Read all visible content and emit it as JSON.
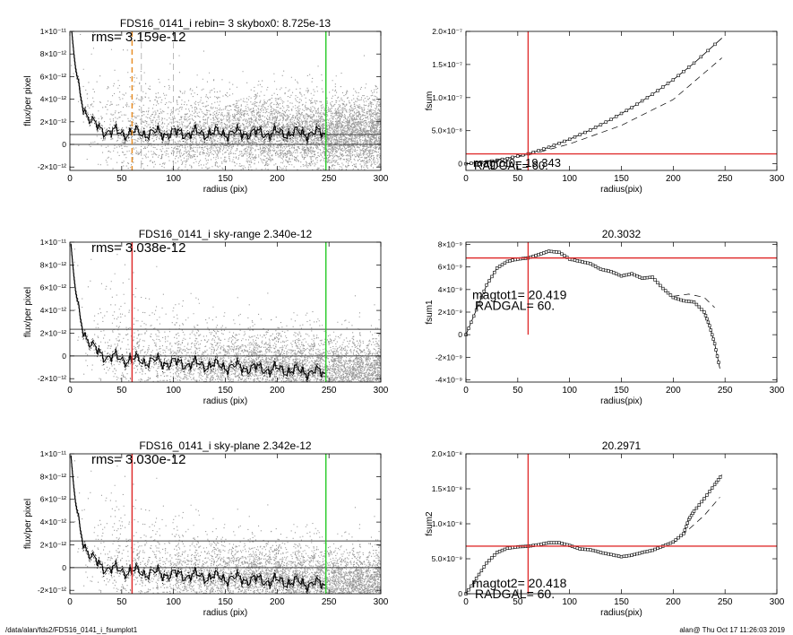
{
  "footer": {
    "left": "/data/alan/fds2/FDS16_0141_i_fsumplot1",
    "right": "alan@  Thu Oct 17 11:26:03 2019"
  },
  "colors": {
    "red": "#e03030",
    "green": "#2ecc2e",
    "orange": "#e8902a",
    "scatter": "#9a9a9a",
    "line": "#000000"
  },
  "chart_data": [
    {
      "type": "scatter",
      "panel": "row1-left",
      "title": "FDS16_0141_i rebin= 3    skybox0:  8.725e-13",
      "annotation": "rms= 3.159e-12",
      "xlabel": "radius (pix)",
      "ylabel": "flux/per pixel",
      "xlim": [
        0,
        300
      ],
      "ylim": [
        -2.3e-12,
        1e-11
      ],
      "xticks": [
        0,
        50,
        100,
        150,
        200,
        250,
        300
      ],
      "xtick_labels": [
        "0",
        "50",
        "100",
        "150",
        "200",
        "250",
        "300"
      ],
      "yticks": [
        -2e-12,
        0,
        2e-12,
        4e-12,
        6e-12,
        8e-12,
        1e-11
      ],
      "ytick_labels": [
        "-2×10⁻¹²",
        "0",
        "2×10⁻¹²",
        "4×10⁻¹²",
        "6×10⁻¹²",
        "8×10⁻¹²",
        "1×10⁻¹¹"
      ],
      "hlines": [
        0,
        8.725e-13
      ],
      "vlines": [
        {
          "x": 60,
          "color": "orange",
          "style": "dashed"
        },
        {
          "x": 69,
          "color": "gray",
          "style": "dashed"
        },
        {
          "x": 100,
          "color": "gray",
          "style": "dashed"
        },
        {
          "x": 247,
          "color": "green",
          "style": "solid"
        }
      ],
      "profile_offset": 1e-12
    },
    {
      "type": "line",
      "panel": "row1-right",
      "title": "",
      "xlabel": "radius(pix)",
      "ylabel": "fsum",
      "xlim": [
        0,
        300
      ],
      "ylim": [
        -1e-08,
        2e-07
      ],
      "xticks": [
        0,
        50,
        100,
        150,
        200,
        250,
        300
      ],
      "xtick_labels": [
        "0",
        "50",
        "100",
        "150",
        "200",
        "250",
        "300"
      ],
      "yticks": [
        0,
        5e-08,
        1e-07,
        1.5e-07,
        2e-07
      ],
      "ytick_labels": [
        "0",
        "5.0×10⁻⁸",
        "1.0×10⁻⁷",
        "1.5×10⁻⁷",
        "2.0×10⁻⁷"
      ],
      "red_vline": 60,
      "red_hline": 1.5e-08,
      "annotations": [
        "magtot0=  19.343",
        "RADGAL=     60."
      ],
      "curve": {
        "x": [
          0,
          20,
          40,
          60,
          80,
          100,
          120,
          140,
          160,
          180,
          200,
          220,
          247
        ],
        "y": [
          0,
          3e-09,
          8e-09,
          1.5e-08,
          2.5e-08,
          3.7e-08,
          5.1e-08,
          6.7e-08,
          8.5e-08,
          1.05e-07,
          1.27e-07,
          1.52e-07,
          1.9e-07
        ]
      },
      "dashed": {
        "x": [
          0,
          60,
          100,
          150,
          200,
          247
        ],
        "y": [
          0,
          1.3e-08,
          3e-08,
          5.8e-08,
          9.7e-08,
          1.6e-07
        ]
      }
    },
    {
      "type": "scatter",
      "panel": "row2-left",
      "title": "FDS16_0141_i sky-range  2.340e-12",
      "annotation": "rms= 3.038e-12",
      "xlabel": "radius (pix)",
      "ylabel": "flux/per pixel",
      "xlim": [
        0,
        300
      ],
      "ylim": [
        -2.3e-12,
        1e-11
      ],
      "xticks": [
        0,
        50,
        100,
        150,
        200,
        250,
        300
      ],
      "xtick_labels": [
        "0",
        "50",
        "100",
        "150",
        "200",
        "250",
        "300"
      ],
      "yticks": [
        -2e-12,
        0,
        2e-12,
        4e-12,
        6e-12,
        8e-12,
        1e-11
      ],
      "ytick_labels": [
        "-2×10⁻¹²",
        "0",
        "2×10⁻¹²",
        "4×10⁻¹²",
        "6×10⁻¹²",
        "8×10⁻¹²",
        "1×10⁻¹¹"
      ],
      "hlines": [
        0,
        2.34e-12
      ],
      "vlines": [
        {
          "x": 60,
          "color": "red",
          "style": "solid"
        },
        {
          "x": 247,
          "color": "green",
          "style": "solid"
        }
      ],
      "profile_offset": 0
    },
    {
      "type": "line",
      "panel": "row2-right",
      "title": "20.3032",
      "xlabel": "radius(pix)",
      "ylabel": "fsum1",
      "xlim": [
        0,
        300
      ],
      "ylim": [
        -4.2e-09,
        8.2e-09
      ],
      "xticks": [
        0,
        50,
        100,
        150,
        200,
        250,
        300
      ],
      "xtick_labels": [
        "0",
        "50",
        "100",
        "150",
        "200",
        "250",
        "300"
      ],
      "yticks": [
        -4e-09,
        -2e-09,
        0,
        2e-09,
        4e-09,
        6e-09,
        8e-09
      ],
      "ytick_labels": [
        "-4×10⁻⁹",
        "-2×10⁻⁹",
        "0",
        "2×10⁻⁹",
        "4×10⁻⁹",
        "6×10⁻⁹",
        "8×10⁻⁹"
      ],
      "red_vline": 60,
      "red_hline": 6.8e-09,
      "red_vline_ymin": 0,
      "annotations": [
        "magtot1=  20.419",
        "RADGAL=     60."
      ],
      "curve": {
        "x": [
          0,
          10,
          20,
          30,
          40,
          50,
          60,
          70,
          80,
          90,
          100,
          110,
          120,
          130,
          140,
          150,
          160,
          170,
          180,
          190,
          200,
          210,
          220,
          230,
          235,
          240,
          245
        ],
        "y": [
          0,
          2.2e-09,
          4.4e-09,
          5.9e-09,
          6.5e-09,
          6.7e-09,
          6.8e-09,
          7.1e-09,
          7.4e-09,
          7.3e-09,
          6.7e-09,
          6.5e-09,
          6.3e-09,
          5.8e-09,
          5.6e-09,
          5.2e-09,
          5.4e-09,
          5e-09,
          5.1e-09,
          4.1e-09,
          3.3e-09,
          3e-09,
          2.9e-09,
          2e-09,
          8e-10,
          -8e-10,
          -3e-09
        ]
      },
      "dashed": {
        "x": [
          200,
          215,
          230,
          240
        ],
        "y": [
          3.4e-09,
          3.6e-09,
          3.3e-09,
          2.4e-09
        ]
      }
    },
    {
      "type": "scatter",
      "panel": "row3-left",
      "title": "FDS16_0141_i sky-plane  2.342e-12",
      "annotation": "rms= 3.030e-12",
      "xlabel": "radius (pix)",
      "ylabel": "flux/per pixel",
      "xlim": [
        0,
        300
      ],
      "ylim": [
        -2.3e-12,
        1e-11
      ],
      "xticks": [
        0,
        50,
        100,
        150,
        200,
        250,
        300
      ],
      "xtick_labels": [
        "0",
        "50",
        "100",
        "150",
        "200",
        "250",
        "300"
      ],
      "yticks": [
        -2e-12,
        0,
        2e-12,
        4e-12,
        6e-12,
        8e-12,
        1e-11
      ],
      "ytick_labels": [
        "-2×10⁻¹²",
        "0",
        "2×10⁻¹²",
        "4×10⁻¹²",
        "6×10⁻¹²",
        "8×10⁻¹²",
        "1×10⁻¹¹"
      ],
      "hlines": [
        0,
        2.342e-12
      ],
      "vlines": [
        {
          "x": 60,
          "color": "red",
          "style": "solid"
        },
        {
          "x": 247,
          "color": "green",
          "style": "solid"
        }
      ],
      "profile_offset": 0
    },
    {
      "type": "line",
      "panel": "row3-right",
      "title": "20.2971",
      "xlabel": "radius(pix)",
      "ylabel": "fsum2",
      "xlim": [
        0,
        300
      ],
      "ylim": [
        0,
        2e-08
      ],
      "xticks": [
        0,
        50,
        100,
        150,
        200,
        250,
        300
      ],
      "xtick_labels": [
        "0",
        "50",
        "100",
        "150",
        "200",
        "250",
        "300"
      ],
      "yticks": [
        0,
        5e-09,
        1e-08,
        1.5e-08,
        2e-08
      ],
      "ytick_labels": [
        "0",
        "5.0×10⁻⁹",
        "1.0×10⁻⁸",
        "1.5×10⁻⁸",
        "2.0×10⁻⁸"
      ],
      "red_vline": 60,
      "red_hline": 6.8e-09,
      "annotations": [
        "magtot2=  20.418",
        "RADGAL=     60."
      ],
      "curve": {
        "x": [
          0,
          10,
          20,
          30,
          40,
          50,
          60,
          70,
          80,
          90,
          100,
          110,
          120,
          130,
          140,
          150,
          160,
          170,
          180,
          190,
          200,
          210,
          215,
          220,
          230,
          240,
          247
        ],
        "y": [
          0,
          2.2e-09,
          4.4e-09,
          5.9e-09,
          6.5e-09,
          6.7e-09,
          6.8e-09,
          7e-09,
          7.3e-09,
          7.3e-09,
          6.9e-09,
          6.4e-09,
          6.3e-09,
          5.9e-09,
          5.6e-09,
          5.3e-09,
          5.5e-09,
          5.9e-09,
          6.2e-09,
          6.8e-09,
          7.4e-09,
          8.6e-09,
          1.06e-08,
          1.18e-08,
          1.36e-08,
          1.56e-08,
          1.7e-08
        ]
      },
      "dashed": {
        "x": [
          200,
          215,
          230,
          245
        ],
        "y": [
          7.2e-09,
          9.2e-09,
          1.12e-08,
          1.38e-08
        ]
      }
    }
  ]
}
